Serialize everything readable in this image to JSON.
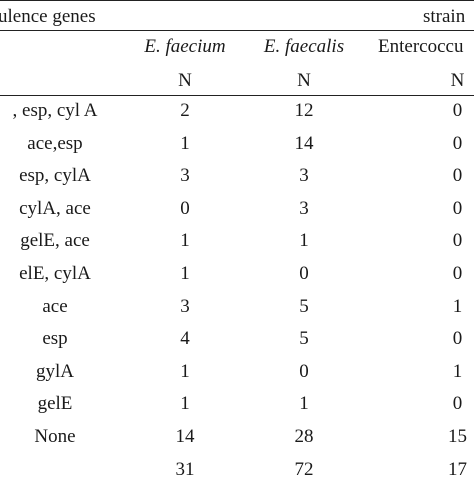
{
  "header": {
    "genes_label": "ulence genes",
    "strain_label": "strain",
    "col_faecium": "E. faecium",
    "col_faecalis": "E. faecalis",
    "col_entero": "Entercoccu",
    "n1": "N",
    "n2": "N",
    "n3": "N"
  },
  "rows": [
    {
      "gene": ", esp, cyl A",
      "faecium": "2",
      "faecalis": "12",
      "entero": "0"
    },
    {
      "gene": "ace,esp",
      "faecium": "1",
      "faecalis": "14",
      "entero": "0"
    },
    {
      "gene": "esp, cylA",
      "faecium": "3",
      "faecalis": "3",
      "entero": "0"
    },
    {
      "gene": "cylA, ace",
      "faecium": "0",
      "faecalis": "3",
      "entero": "0"
    },
    {
      "gene": "gelE, ace",
      "faecium": "1",
      "faecalis": "1",
      "entero": "0"
    },
    {
      "gene": "elE, cylA",
      "faecium": "1",
      "faecalis": "0",
      "entero": "0"
    },
    {
      "gene": "ace",
      "faecium": "3",
      "faecalis": "5",
      "entero": "1"
    },
    {
      "gene": "esp",
      "faecium": "4",
      "faecalis": "5",
      "entero": "0"
    },
    {
      "gene": "gylA",
      "faecium": "1",
      "faecalis": "0",
      "entero": "1"
    },
    {
      "gene": "gelE",
      "faecium": "1",
      "faecalis": "1",
      "entero": "0"
    },
    {
      "gene": "None",
      "faecium": "14",
      "faecalis": "28",
      "entero": "15"
    }
  ],
  "total": {
    "gene": "",
    "faecium": "31",
    "faecalis": "72",
    "entero": "17"
  }
}
